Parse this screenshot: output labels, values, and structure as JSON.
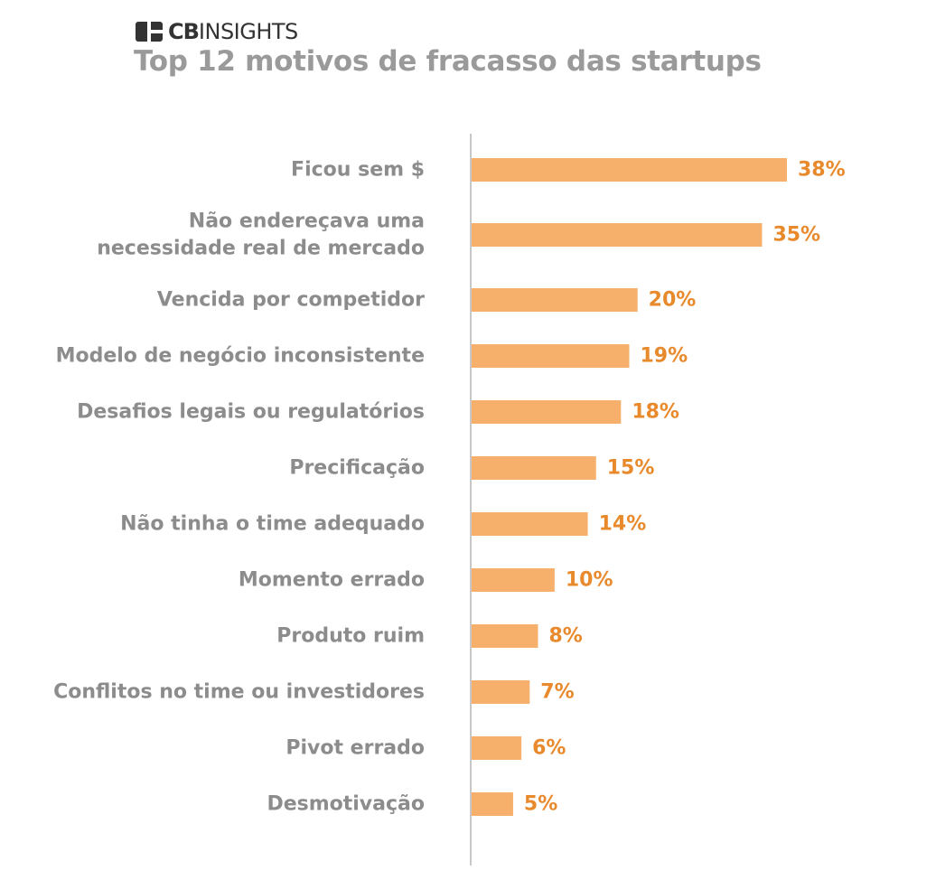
{
  "brand": {
    "logo_text_bold": "CB",
    "logo_text_regular": "INSIGHTS"
  },
  "chart_data": {
    "type": "bar",
    "orientation": "horizontal",
    "title": "Top 12 motivos de fracasso das startups",
    "categories": [
      [
        "Ficou sem $"
      ],
      [
        "Não endereçava uma",
        "necessidade real de mercado"
      ],
      [
        "Vencida por competidor"
      ],
      [
        "Modelo de negócio inconsistente"
      ],
      [
        "Desafios legais ou regulatórios"
      ],
      [
        "Precificação"
      ],
      [
        "Não tinha o time adequado"
      ],
      [
        "Momento errado"
      ],
      [
        "Produto ruim"
      ],
      [
        "Conflitos no time ou investidores"
      ],
      [
        "Pivot errado"
      ],
      [
        "Desmotivação"
      ]
    ],
    "values": [
      38,
      35,
      20,
      19,
      18,
      15,
      14,
      10,
      8,
      7,
      6,
      5
    ],
    "value_labels": [
      "38%",
      "35%",
      "20%",
      "19%",
      "18%",
      "15%",
      "14%",
      "10%",
      "8%",
      "7%",
      "6%",
      "5%"
    ],
    "unit": "%",
    "xlim": [
      0,
      38
    ],
    "grid": false,
    "legend": "none",
    "colors": {
      "bar": "#f7b06b",
      "value_label": "#e8892c",
      "category_label": "#8c8c8c",
      "axis": "#c8c8c8",
      "title": "#9a9a9a"
    }
  }
}
